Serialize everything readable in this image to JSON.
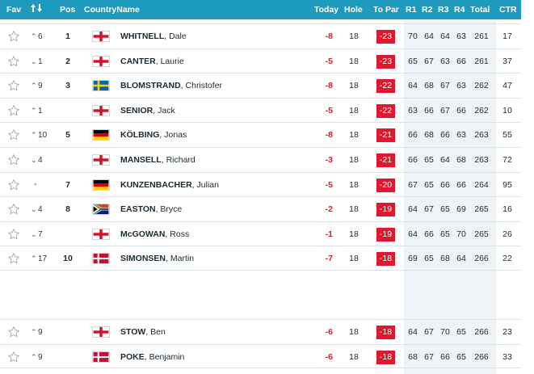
{
  "header": {
    "fav": "Fav",
    "sort_icon": "sort-arrows-icon",
    "pos": "Pos",
    "country_name": "CountryName",
    "today": "Today",
    "hole": "Hole",
    "to_par": "To Par",
    "r1": "R1",
    "r2": "R2",
    "r3": "R3",
    "r4": "R4",
    "total": "Total",
    "ctr": "CTR"
  },
  "colors": {
    "header_bg": "#1f9abf",
    "to_par_bg": "#e0182d",
    "today_text": "#e0182d",
    "rounds_bg": "#eef3f6"
  },
  "players": [
    {
      "move": "6",
      "dir": "up",
      "pos": "1",
      "flag": "england",
      "surname": "WHITNELL",
      "first": "Dale",
      "today": "-8",
      "hole": "18",
      "to_par": "-23",
      "r1": "70",
      "r2": "64",
      "r3": "64",
      "r4": "63",
      "total": "261",
      "ctr": "17"
    },
    {
      "move": "1",
      "dir": "down",
      "pos": "2",
      "flag": "england",
      "surname": "CANTER",
      "first": "Laurie",
      "today": "-5",
      "hole": "18",
      "to_par": "-23",
      "r1": "65",
      "r2": "67",
      "r3": "63",
      "r4": "66",
      "total": "261",
      "ctr": "37"
    },
    {
      "move": "9",
      "dir": "up",
      "pos": "3",
      "flag": "sweden",
      "surname": "BLOMSTRAND",
      "first": "Christofer",
      "today": "-8",
      "hole": "18",
      "to_par": "-22",
      "r1": "64",
      "r2": "68",
      "r3": "67",
      "r4": "63",
      "total": "262",
      "ctr": "47"
    },
    {
      "move": "1",
      "dir": "up",
      "pos": "",
      "flag": "england",
      "surname": "SENIOR",
      "first": "Jack",
      "today": "-5",
      "hole": "18",
      "to_par": "-22",
      "r1": "63",
      "r2": "66",
      "r3": "67",
      "r4": "66",
      "total": "262",
      "ctr": "10"
    },
    {
      "move": "10",
      "dir": "up",
      "pos": "5",
      "flag": "germany",
      "surname": "KÖLBING",
      "first": "Jonas",
      "today": "-8",
      "hole": "18",
      "to_par": "-21",
      "r1": "66",
      "r2": "68",
      "r3": "66",
      "r4": "63",
      "total": "263",
      "ctr": "55"
    },
    {
      "move": "4",
      "dir": "down",
      "pos": "",
      "flag": "england",
      "surname": "MANSELL",
      "first": "Richard",
      "today": "-3",
      "hole": "18",
      "to_par": "-21",
      "r1": "66",
      "r2": "65",
      "r3": "64",
      "r4": "68",
      "total": "263",
      "ctr": "72"
    },
    {
      "move": "-",
      "dir": "none",
      "pos": "7",
      "flag": "germany",
      "surname": "KUNZENBACHER",
      "first": "Julian",
      "today": "-5",
      "hole": "18",
      "to_par": "-20",
      "r1": "67",
      "r2": "65",
      "r3": "66",
      "r4": "66",
      "total": "264",
      "ctr": "95"
    },
    {
      "move": "4",
      "dir": "down",
      "pos": "8",
      "flag": "south-africa",
      "surname": "EASTON",
      "first": "Bryce",
      "today": "-2",
      "hole": "18",
      "to_par": "-19",
      "r1": "64",
      "r2": "67",
      "r3": "65",
      "r4": "69",
      "total": "265",
      "ctr": "16"
    },
    {
      "move": "7",
      "dir": "down",
      "pos": "",
      "flag": "england",
      "surname": "McGOWAN",
      "first": "Ross",
      "today": "-1",
      "hole": "18",
      "to_par": "-19",
      "r1": "64",
      "r2": "66",
      "r3": "65",
      "r4": "70",
      "total": "265",
      "ctr": "26"
    },
    {
      "move": "17",
      "dir": "up",
      "pos": "10",
      "flag": "denmark",
      "surname": "SIMONSEN",
      "first": "Martin",
      "today": "-7",
      "hole": "18",
      "to_par": "-18",
      "r1": "69",
      "r2": "65",
      "r3": "68",
      "r4": "64",
      "total": "266",
      "ctr": "22"
    },
    {
      "move": "9",
      "dir": "up",
      "pos": "",
      "flag": "england",
      "surname": "STOW",
      "first": "Ben",
      "today": "-6",
      "hole": "18",
      "to_par": "-18",
      "r1": "64",
      "r2": "67",
      "r3": "70",
      "r4": "65",
      "total": "266",
      "ctr": "23"
    },
    {
      "move": "9",
      "dir": "up",
      "pos": "",
      "flag": "denmark",
      "surname": "POKE",
      "first": "Benjamin",
      "today": "-6",
      "hole": "18",
      "to_par": "-18",
      "r1": "68",
      "r2": "67",
      "r3": "66",
      "r4": "65",
      "total": "266",
      "ctr": "33"
    }
  ]
}
